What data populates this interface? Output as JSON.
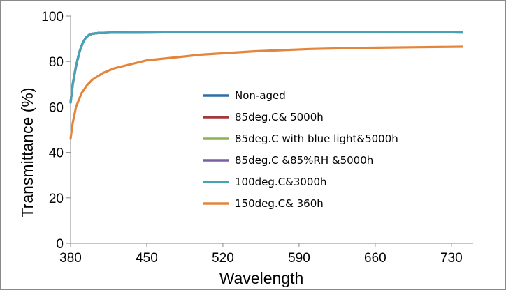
{
  "chart_data": {
    "type": "line",
    "title": "",
    "xlabel": "Wavelength",
    "ylabel": "Transmittance (%)",
    "xlim": [
      380,
      750
    ],
    "ylim": [
      0,
      100
    ],
    "xticks": [
      380,
      450,
      520,
      590,
      660,
      730
    ],
    "yticks": [
      0,
      20,
      40,
      60,
      80,
      100
    ],
    "grid": false,
    "legend_position": "center-right",
    "series": [
      {
        "name": "Non-aged",
        "color": "#2E6FA6",
        "x": [
          380,
          382,
          385,
          388,
          391,
          394,
          397,
          400,
          405,
          410,
          420,
          450,
          500,
          550,
          600,
          650,
          700,
          740
        ],
        "y": [
          62,
          70,
          78,
          84,
          88,
          90.5,
          91.7,
          92.2,
          92.5,
          92.6,
          92.7,
          92.8,
          92.9,
          93.0,
          93.0,
          93.0,
          92.9,
          92.8
        ]
      },
      {
        "name": "85deg.C& 5000h",
        "color": "#A6373A",
        "x": [
          380,
          382,
          385,
          388,
          391,
          394,
          397,
          400,
          405,
          410,
          420,
          450,
          500,
          550,
          600,
          650,
          700,
          740
        ],
        "y": [
          62,
          70,
          78,
          84,
          88,
          90.5,
          91.7,
          92.2,
          92.5,
          92.6,
          92.7,
          92.8,
          92.9,
          93.0,
          93.0,
          93.0,
          92.9,
          92.8
        ]
      },
      {
        "name": "85deg.C with blue light&5000h",
        "color": "#8DB050",
        "x": [
          380,
          382,
          385,
          388,
          391,
          394,
          397,
          400,
          405,
          410,
          420,
          450,
          500,
          550,
          600,
          650,
          700,
          740
        ],
        "y": [
          62,
          70,
          78,
          84,
          88,
          90.5,
          91.7,
          92.2,
          92.5,
          92.6,
          92.7,
          92.8,
          92.9,
          93.0,
          93.0,
          93.0,
          92.9,
          92.8
        ]
      },
      {
        "name": "85deg.C &85%RH &5000h",
        "color": "#7A60A0",
        "x": [
          380,
          382,
          385,
          388,
          391,
          394,
          397,
          400,
          405,
          410,
          420,
          450,
          500,
          550,
          600,
          650,
          700,
          740
        ],
        "y": [
          62,
          70,
          78,
          84,
          88,
          90.5,
          91.7,
          92.2,
          92.5,
          92.6,
          92.7,
          92.8,
          92.9,
          93.0,
          93.0,
          93.0,
          92.9,
          92.8
        ]
      },
      {
        "name": "100deg.C&3000h",
        "color": "#46A3B5",
        "x": [
          380,
          382,
          385,
          388,
          391,
          394,
          397,
          400,
          405,
          410,
          420,
          450,
          500,
          550,
          600,
          650,
          700,
          740
        ],
        "y": [
          62,
          70,
          78,
          84,
          88,
          90.5,
          91.7,
          92.2,
          92.5,
          92.6,
          92.7,
          92.8,
          92.9,
          93.0,
          93.0,
          93.0,
          92.9,
          92.8
        ]
      },
      {
        "name": "150deg.C& 360h",
        "color": "#E3863B",
        "x": [
          380,
          382,
          385,
          390,
          395,
          400,
          410,
          420,
          450,
          500,
          550,
          600,
          650,
          700,
          740
        ],
        "y": [
          46,
          53,
          60,
          66,
          69.5,
          72,
          75,
          77,
          80.5,
          83,
          84.5,
          85.5,
          86,
          86.3,
          86.5
        ]
      }
    ]
  }
}
